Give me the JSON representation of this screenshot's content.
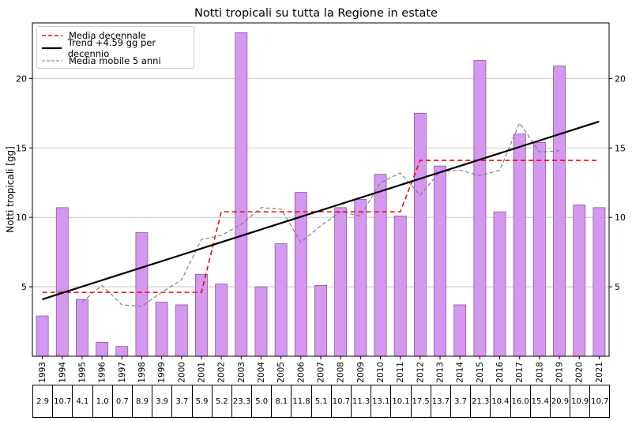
{
  "chart_data": {
    "type": "bar",
    "title": "Notti tropicali su tutta la Regione in estate",
    "ylabel": "Notti tropicali [gg]",
    "xlabel": "",
    "ylim": [
      0,
      24
    ],
    "yticks": [
      5,
      10,
      15,
      20
    ],
    "grid": true,
    "bar_color": "#d597f0",
    "bar_edge": "#7a4f8e",
    "categories": [
      "1993",
      "1994",
      "1995",
      "1996",
      "1997",
      "1998",
      "1999",
      "2000",
      "2001",
      "2002",
      "2003",
      "2004",
      "2005",
      "2006",
      "2007",
      "2008",
      "2009",
      "2010",
      "2011",
      "2012",
      "2013",
      "2014",
      "2015",
      "2016",
      "2017",
      "2018",
      "2019",
      "2020",
      "2021"
    ],
    "values": [
      2.9,
      10.7,
      4.1,
      1.0,
      0.7,
      8.9,
      3.9,
      3.7,
      5.9,
      5.2,
      23.3,
      5.0,
      8.1,
      11.8,
      5.1,
      10.7,
      11.3,
      13.1,
      10.1,
      17.5,
      13.7,
      3.7,
      21.3,
      10.4,
      16.0,
      15.4,
      20.9,
      10.9,
      10.7
    ],
    "series": [
      {
        "name": "Media decennale",
        "style": "dashed",
        "color": "#ff0000",
        "segments": [
          {
            "from": "1993",
            "to": "2001",
            "value": 4.6
          },
          {
            "from": "2002",
            "to": "2011",
            "value": 10.4
          },
          {
            "from": "2012",
            "to": "2021",
            "value": 14.1
          }
        ]
      },
      {
        "name": "Trend +4.59 gg per decennio",
        "color": "#000000",
        "start": {
          "x": "1993",
          "y": 4.1
        },
        "end": {
          "x": "2021",
          "y": 16.9
        }
      },
      {
        "name": "Media mobile 5 anni",
        "style": "dashed",
        "color": "#777777",
        "x": [
          "1995",
          "1996",
          "1997",
          "1998",
          "1999",
          "2000",
          "2001",
          "2002",
          "2003",
          "2004",
          "2005",
          "2006",
          "2007",
          "2008",
          "2009",
          "2010",
          "2011",
          "2012",
          "2013",
          "2014",
          "2015",
          "2016",
          "2017",
          "2018",
          "2019"
        ],
        "values": [
          3.9,
          5.1,
          3.7,
          3.6,
          4.6,
          5.5,
          8.4,
          8.7,
          9.5,
          10.7,
          10.6,
          8.2,
          9.4,
          10.4,
          10.1,
          12.5,
          13.2,
          11.6,
          13.3,
          13.4,
          13.0,
          13.4,
          16.8,
          14.7,
          14.8
        ]
      }
    ],
    "legend_position": "top-left"
  }
}
